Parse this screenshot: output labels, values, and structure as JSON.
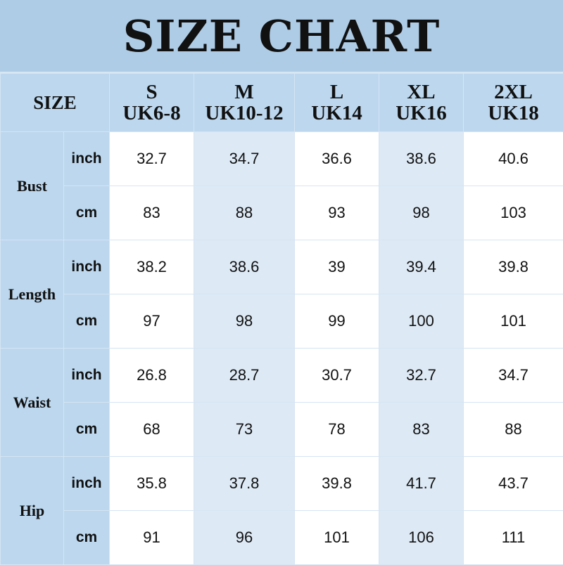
{
  "title": "SIZE CHART",
  "chart_data": {
    "type": "table",
    "title": "SIZE CHART",
    "corner_label": "SIZE",
    "columns": [
      {
        "size": "S",
        "uk": "UK6-8"
      },
      {
        "size": "M",
        "uk": "UK10-12"
      },
      {
        "size": "L",
        "uk": "UK14"
      },
      {
        "size": "XL",
        "uk": "UK16"
      },
      {
        "size": "2XL",
        "uk": "UK18"
      }
    ],
    "measurements": [
      {
        "name": "Bust",
        "rows": [
          {
            "unit": "inch",
            "values": [
              "32.7",
              "34.7",
              "36.6",
              "38.6",
              "40.6"
            ]
          },
          {
            "unit": "cm",
            "values": [
              "83",
              "88",
              "93",
              "98",
              "103"
            ]
          }
        ]
      },
      {
        "name": "Length",
        "rows": [
          {
            "unit": "inch",
            "values": [
              "38.2",
              "38.6",
              "39",
              "39.4",
              "39.8"
            ]
          },
          {
            "unit": "cm",
            "values": [
              "97",
              "98",
              "99",
              "100",
              "101"
            ]
          }
        ]
      },
      {
        "name": "Waist",
        "rows": [
          {
            "unit": "inch",
            "values": [
              "26.8",
              "28.7",
              "30.7",
              "32.7",
              "34.7"
            ]
          },
          {
            "unit": "cm",
            "values": [
              "68",
              "73",
              "78",
              "83",
              "88"
            ]
          }
        ]
      },
      {
        "name": "Hip",
        "rows": [
          {
            "unit": "inch",
            "values": [
              "35.8",
              "37.8",
              "39.8",
              "41.7",
              "43.7"
            ]
          },
          {
            "unit": "cm",
            "values": [
              "91",
              "96",
              "101",
              "106",
              "111"
            ]
          }
        ]
      }
    ],
    "colors": {
      "title_bg": "#aecce6",
      "header_bg": "#bcd7ee",
      "alt_cell": "#dde9f5",
      "cell": "#ffffff"
    }
  }
}
